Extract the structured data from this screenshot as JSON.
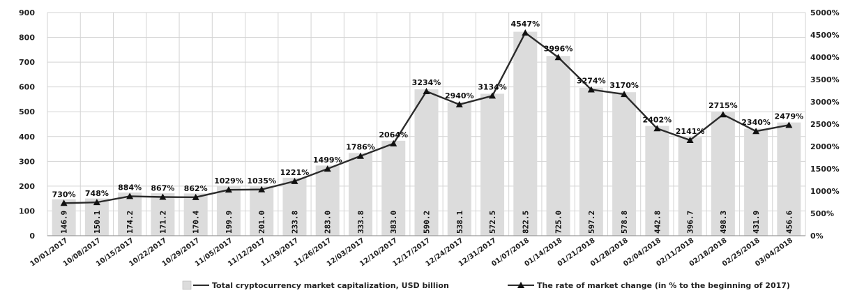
{
  "chart_data": {
    "type": "bar+line",
    "categories": [
      "10/01/2017",
      "10/08/2017",
      "10/15/2017",
      "10/22/2017",
      "10/29/2017",
      "11/05/2017",
      "11/12/2017",
      "11/19/2017",
      "11/26/2017",
      "12/03/2017",
      "12/10/2017",
      "12/17/2017",
      "12/24/2017",
      "12/31/2017",
      "01/07/2018",
      "01/14/2018",
      "01/21/2018",
      "01/28/2018",
      "02/04/2018",
      "02/11/2018",
      "02/18/2018",
      "02/25/2018",
      "03/04/2018"
    ],
    "series": [
      {
        "name": "Total cryptocurrency market capitalization, USD billion",
        "type": "bar",
        "axis": "left",
        "values": [
          146.9,
          150.1,
          174.2,
          171.2,
          170.4,
          199.9,
          201.0,
          233.8,
          283.0,
          333.8,
          383.0,
          590.2,
          538.1,
          572.5,
          822.5,
          725.0,
          597.2,
          578.8,
          442.8,
          396.7,
          498.3,
          431.9,
          456.6
        ],
        "labels": [
          "146.9",
          "150.1",
          "174.2",
          "171.2",
          "170.4",
          "199.9",
          "201.0",
          "233.8",
          "283.0",
          "333.8",
          "383.0",
          "590.2",
          "538.1",
          "572.5",
          "822.5",
          "725.0",
          "597.2",
          "578.8",
          "442.8",
          "396.7",
          "498.3",
          "431.9",
          "456.6"
        ]
      },
      {
        "name": "The rate of market change (in % to the beginning of 2017)",
        "type": "line",
        "axis": "right",
        "values": [
          730,
          748,
          884,
          867,
          862,
          1029,
          1035,
          1221,
          1499,
          1786,
          2064,
          3234,
          2940,
          3134,
          4547,
          3996,
          3274,
          3170,
          2402,
          2141,
          2715,
          2340,
          2479
        ],
        "labels": [
          "730%",
          "748%",
          "884%",
          "867%",
          "862%",
          "1029%",
          "1035%",
          "1221%",
          "1499%",
          "1786%",
          "2064%",
          "3234%",
          "2940%",
          "3134%",
          "4547%",
          "3996%",
          "3274%",
          "3170%",
          "2402%",
          "2141%",
          "2715%",
          "2340%",
          "2479%"
        ]
      }
    ],
    "y_left": {
      "ylim": [
        0,
        900
      ],
      "ticks": [
        "0",
        "100",
        "200",
        "300",
        "400",
        "500",
        "600",
        "700",
        "800",
        "900"
      ]
    },
    "y_right": {
      "ylim": [
        0,
        5000
      ],
      "ticks": [
        "0%",
        "500%",
        "1000%",
        "1500%",
        "2000%",
        "2500%",
        "3000%",
        "3500%",
        "4000%",
        "4500%",
        "5000%"
      ]
    },
    "grid": true,
    "legend": "bottom",
    "colors": {
      "bar": "#dcdcdc",
      "line": "#2b2b2b",
      "grid": "#d3d3d3",
      "axis": "#9a9a9a"
    }
  }
}
